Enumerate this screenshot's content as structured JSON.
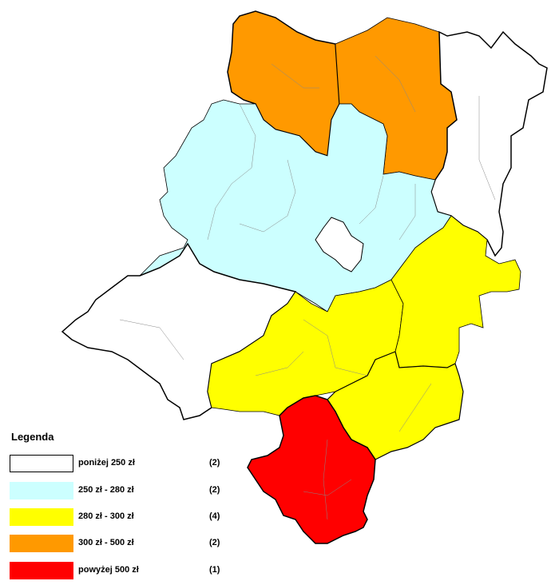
{
  "legend": {
    "title": "Legenda",
    "items": [
      {
        "label": "poniżej 250 zł",
        "count": "(2)",
        "color": "#ffffff",
        "border": "#000000"
      },
      {
        "label": "250 zł - 280 zł",
        "count": "(2)",
        "color": "#ccffff",
        "border": "#ccffff"
      },
      {
        "label": "280 zł - 300 zł",
        "count": "(4)",
        "color": "#ffff00",
        "border": "#ffff00"
      },
      {
        "label": "300 zł - 500 zł",
        "count": "(2)",
        "color": "#ff9900",
        "border": "#ff9900"
      },
      {
        "label": "powyżej 500 zł",
        "count": "(1)",
        "color": "#ff0000",
        "border": "#ff0000"
      }
    ]
  },
  "map": {
    "colors": {
      "below_250": "#ffffff",
      "from_250_to_280": "#ccffff",
      "from_280_to_300": "#ffff00",
      "from_300_to_500": "#ff9900",
      "above_500": "#ff0000",
      "outline": "#000000",
      "internal_border": "#888888"
    }
  }
}
